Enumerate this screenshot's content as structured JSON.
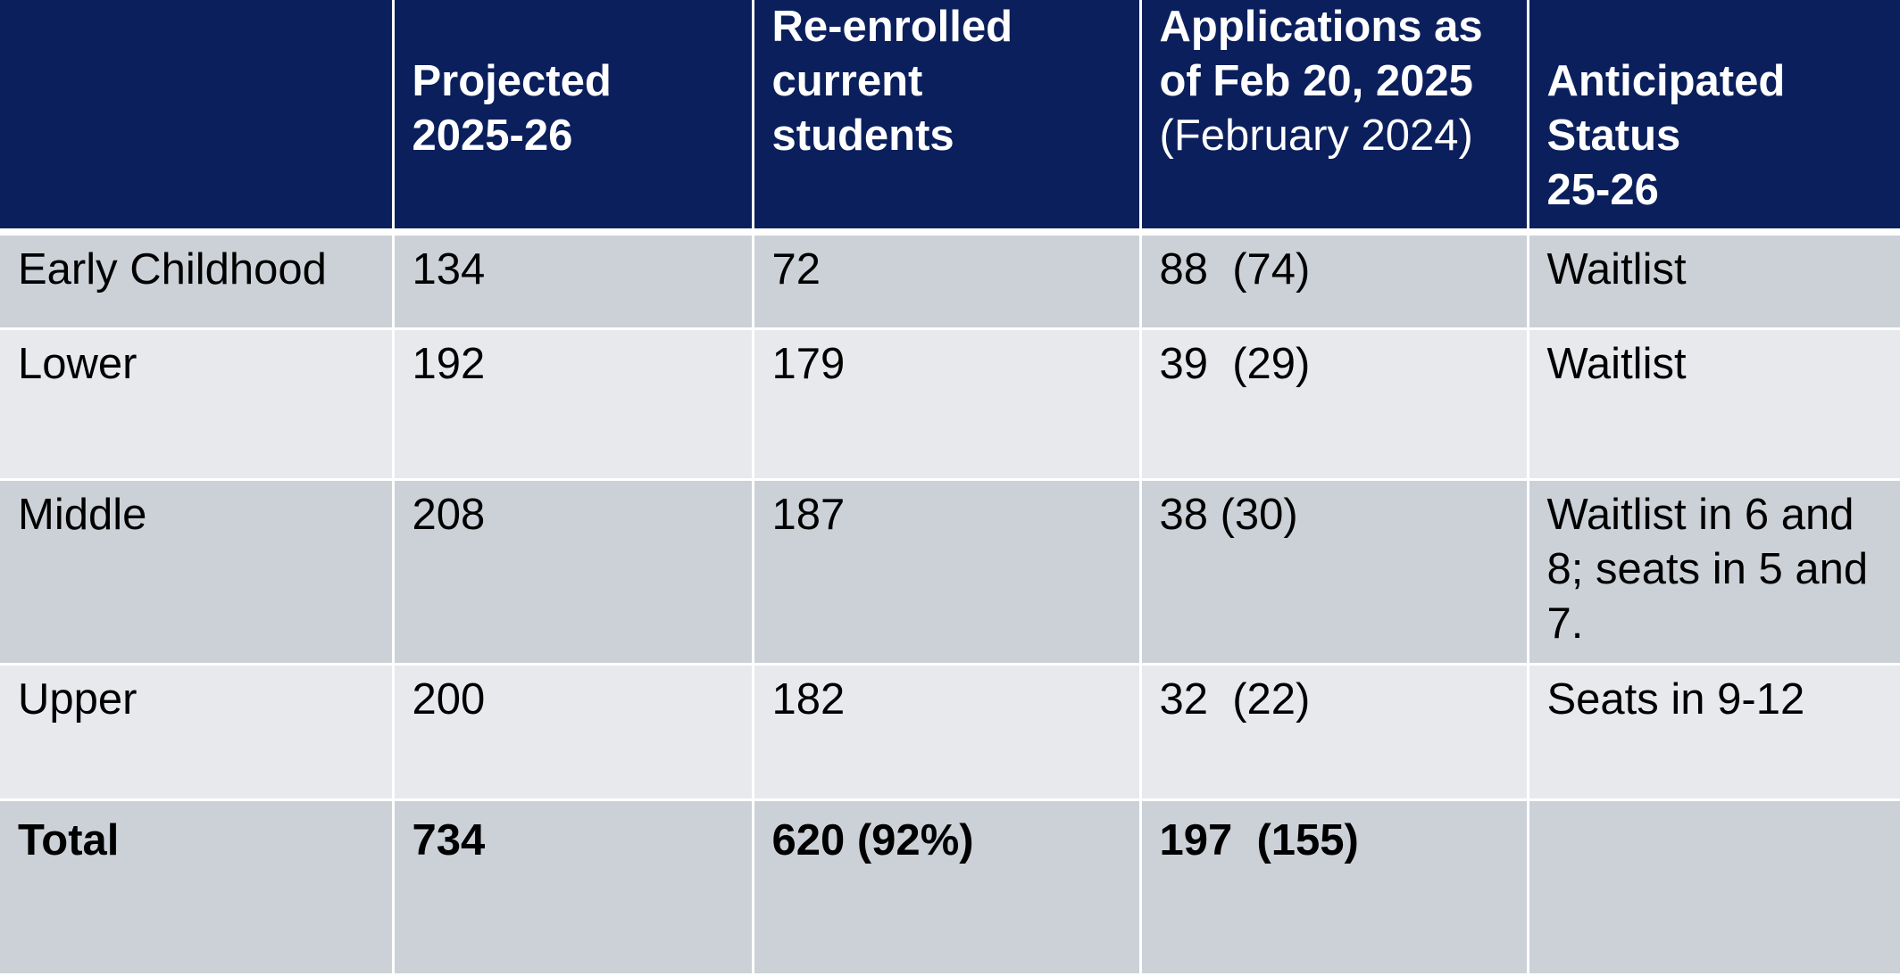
{
  "table": {
    "headers": [
      {
        "line1": "",
        "line2": "",
        "line3": ""
      },
      {
        "line1": "Projected",
        "line2": "2025-26",
        "line3": ""
      },
      {
        "line1": "Re-enrolled",
        "line2": "current",
        "line3": "students"
      },
      {
        "line1": "Applications as",
        "line2": "of Feb 20, 2025",
        "sub": "(February 2024)"
      },
      {
        "line1": "Anticipated",
        "line2": "Status",
        "line3": "25-26"
      }
    ],
    "rows": [
      {
        "division": "Early Childhood",
        "projected": "134",
        "reenrolled": "72",
        "applications": "88  (74)",
        "status": "Waitlist"
      },
      {
        "division": "Lower",
        "projected": "192",
        "reenrolled": "179",
        "applications": "39  (29)",
        "status": "Waitlist"
      },
      {
        "division": "Middle",
        "projected": "208",
        "reenrolled": "187",
        "applications": "38 (30)",
        "status": "Waitlist in 6 and 8; seats in 5 and 7."
      },
      {
        "division": "Upper",
        "projected": "200",
        "reenrolled": "182",
        "applications": "32  (22)",
        "status": "Seats in 9-12"
      }
    ],
    "total": {
      "label": "Total",
      "projected": "734",
      "reenrolled": "620 (92%)",
      "applications": "197  (155)",
      "status": ""
    }
  },
  "colors": {
    "header_bg": "#0a1f5c",
    "row_dark": "#ccd1d8",
    "row_light": "#e7e9ec",
    "border": "#ffffff"
  }
}
